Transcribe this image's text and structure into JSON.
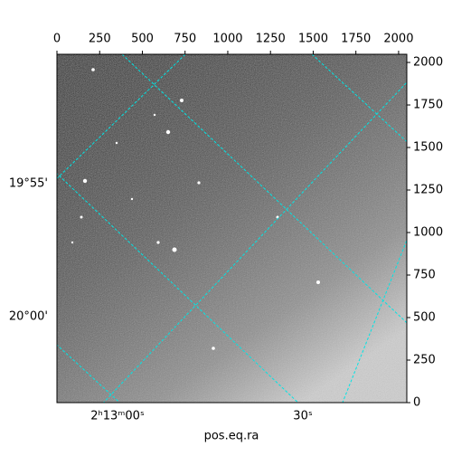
{
  "chart_data": {
    "type": "image",
    "xlabel": "pos.eq.ra",
    "xlim": [
      0,
      2048
    ],
    "ylim": [
      0,
      2048
    ],
    "xticks": [
      0,
      250,
      500,
      750,
      1000,
      1250,
      1500,
      1750,
      2000
    ],
    "yticks": [
      0,
      250,
      500,
      750,
      1000,
      1250,
      1500,
      1750,
      2000
    ],
    "dec_labels": [
      "19°55'",
      "20°00'"
    ],
    "ra_labels": [
      "2ʰ13ᵐ00ˢ",
      "30ˢ"
    ],
    "grid_color": "#00e5e5"
  }
}
